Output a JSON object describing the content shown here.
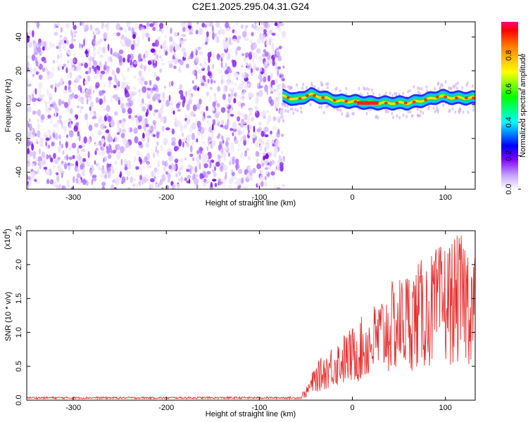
{
  "title": "C2E1.2025.295.04.31.G24",
  "chart_data": [
    {
      "type": "heatmap",
      "name": "spectrogram",
      "xlabel": "Height of straight line (km)",
      "ylabel": "Frequency (Hz)",
      "xlim": [
        -350,
        132
      ],
      "ylim": [
        -50,
        49
      ],
      "xticks": [
        -300,
        -200,
        -100,
        0,
        100
      ],
      "yticks": [
        -40,
        -20,
        0,
        20,
        40
      ],
      "noise_region_x": [
        -350,
        -75
      ],
      "signal_region_x": [
        -75,
        132
      ],
      "signal_band_halfwidth_hz": 4,
      "signal_ridge": [
        {
          "x": -75,
          "y": 5
        },
        {
          "x": -60,
          "y": 3
        },
        {
          "x": -45,
          "y": 6
        },
        {
          "x": -30,
          "y": 4
        },
        {
          "x": -15,
          "y": 2
        },
        {
          "x": 0,
          "y": 2
        },
        {
          "x": 20,
          "y": 1
        },
        {
          "x": 40,
          "y": 1
        },
        {
          "x": 60,
          "y": 1
        },
        {
          "x": 80,
          "y": 3
        },
        {
          "x": 95,
          "y": 5
        },
        {
          "x": 110,
          "y": 4
        },
        {
          "x": 132,
          "y": 4
        }
      ],
      "colorbar": {
        "label": "Normalized spectral amplitude",
        "range": [
          0,
          1
        ],
        "ticks": [
          "0.0",
          "0.2",
          "0.4",
          "0.6",
          "0.8"
        ],
        "tick_values": [
          0,
          0.2,
          0.4,
          0.6,
          0.8
        ]
      }
    },
    {
      "type": "line",
      "name": "snr",
      "xlabel": "Height of straight line (km)",
      "ylabel": "SNR (10 * v/v)",
      "yscale_label": "(x10",
      "yscale_exp": "4",
      "xlim": [
        -350,
        132
      ],
      "ylim": [
        0,
        2.5
      ],
      "xticks": [
        -300,
        -200,
        -100,
        0,
        100
      ],
      "yticks": [
        "0.0",
        "0.5",
        "1.0",
        "1.5",
        "2.0",
        "2.5"
      ],
      "ytick_values": [
        0,
        0.5,
        1.0,
        1.5,
        2.0,
        2.5
      ],
      "color": "#e53030",
      "envelope": [
        {
          "x": -350,
          "y": 0.03
        },
        {
          "x": -60,
          "y": 0.04
        },
        {
          "x": -50,
          "y": 0.15
        },
        {
          "x": -40,
          "y": 0.45
        },
        {
          "x": -20,
          "y": 0.75
        },
        {
          "x": 0,
          "y": 0.95
        },
        {
          "x": 20,
          "y": 1.2
        },
        {
          "x": 40,
          "y": 1.5
        },
        {
          "x": 60,
          "y": 1.7
        },
        {
          "x": 80,
          "y": 1.85
        },
        {
          "x": 100,
          "y": 2.05
        },
        {
          "x": 120,
          "y": 2.15
        },
        {
          "x": 132,
          "y": 2.0
        }
      ]
    }
  ]
}
